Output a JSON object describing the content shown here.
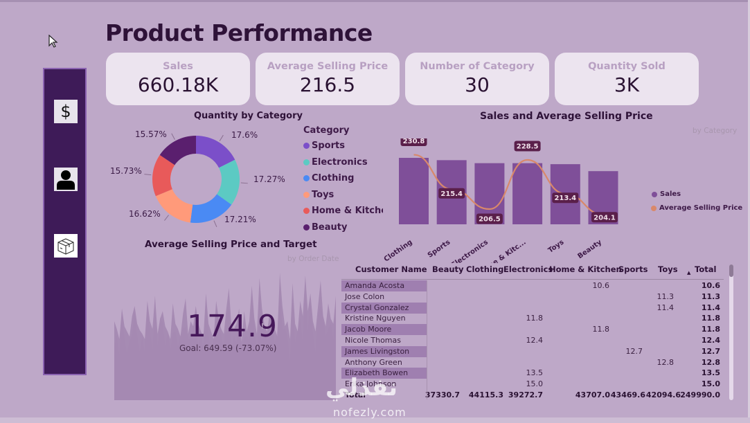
{
  "page": {
    "title": "Product Performance"
  },
  "sidebar": {
    "items": [
      {
        "name": "sales",
        "icon": "dollar-icon",
        "label": "$"
      },
      {
        "name": "customer",
        "icon": "person-icon"
      },
      {
        "name": "product",
        "icon": "box-icon"
      }
    ]
  },
  "kpis": [
    {
      "label": "Sales",
      "value": "660.18K"
    },
    {
      "label": "Average Selling Price",
      "value": "216.5"
    },
    {
      "label": "Number of Category",
      "value": "30"
    },
    {
      "label": "Quantity Sold",
      "value": "3K"
    }
  ],
  "donut": {
    "title": "Quantity by Category",
    "legend_title": "Category",
    "slices": [
      {
        "category": "Sports",
        "percent": 17.6,
        "label": "17.6%",
        "color": "#7b4fc9"
      },
      {
        "category": "Electronics",
        "percent": 17.27,
        "label": "17.27%",
        "color": "#5ccac3"
      },
      {
        "category": "Clothing",
        "percent": 17.21,
        "label": "17.21%",
        "color": "#4a8af4"
      },
      {
        "category": "Toys",
        "percent": 16.62,
        "label": "16.62%",
        "color": "#ff9a7a"
      },
      {
        "category": "Home & Kitchen",
        "legend_label": "Home & Kitcher",
        "percent": 15.73,
        "label": "15.73%",
        "color": "#e85a5a"
      },
      {
        "category": "Beauty",
        "percent": 15.57,
        "label": "15.57%",
        "color": "#5a1f6e"
      }
    ]
  },
  "combo": {
    "title": "Sales and Average Selling Price",
    "subtitle": "by Category",
    "legend": [
      {
        "label": "Sales",
        "color": "#7f4f99"
      },
      {
        "label": "Average Selling Price",
        "color": "#d9886a"
      }
    ]
  },
  "gauge": {
    "title": "Average Selling Price and Target",
    "subtitle": "by Order Date",
    "value": "174.9",
    "warning": "!",
    "goal_text": "Goal: 649.59 (-73.07%)"
  },
  "matrix": {
    "headers": [
      "Customer Name",
      "Beauty",
      "Clothing",
      "Electronics",
      "Home & Kitchen",
      "Sports",
      "Toys",
      "Total"
    ],
    "sort_indicator": "▲",
    "rows": [
      {
        "name": "Amanda Acosta",
        "cells": [
          "",
          "",
          "",
          "10.6",
          "",
          ""
        ],
        "total": "10.6"
      },
      {
        "name": "Jose Colon",
        "cells": [
          "",
          "",
          "",
          "",
          "",
          "11.3"
        ],
        "total": "11.3"
      },
      {
        "name": "Crystal Gonzalez",
        "cells": [
          "",
          "",
          "",
          "",
          "",
          "11.4"
        ],
        "total": "11.4"
      },
      {
        "name": "Kristine Nguyen",
        "cells": [
          "",
          "",
          "11.8",
          "",
          "",
          ""
        ],
        "total": "11.8"
      },
      {
        "name": "Jacob Moore",
        "cells": [
          "",
          "",
          "",
          "11.8",
          "",
          ""
        ],
        "total": "11.8"
      },
      {
        "name": "Nicole Thomas",
        "cells": [
          "",
          "",
          "12.4",
          "",
          "",
          ""
        ],
        "total": "12.4"
      },
      {
        "name": "James Livingston",
        "cells": [
          "",
          "",
          "",
          "",
          "12.7",
          ""
        ],
        "total": "12.7"
      },
      {
        "name": "Anthony Green",
        "cells": [
          "",
          "",
          "",
          "",
          "",
          "12.8"
        ],
        "total": "12.8"
      },
      {
        "name": "Elizabeth Bowen",
        "cells": [
          "",
          "",
          "13.5",
          "",
          "",
          ""
        ],
        "total": "13.5"
      },
      {
        "name": "Erika Johnson",
        "cells": [
          "",
          "",
          "15.0",
          "",
          "",
          ""
        ],
        "total": "15.0"
      }
    ],
    "total_row": {
      "name": "Total",
      "cells": [
        "37330.7",
        "44115.3",
        "39272.7",
        "43707.0",
        "43469.6",
        "42094.6"
      ],
      "total": "249990.0"
    }
  },
  "watermark": {
    "text": "نفذلي",
    "url": "nofezly.com"
  },
  "chart_data": [
    {
      "type": "pie",
      "title": "Quantity by Category",
      "legend_title": "Category",
      "legend_position": "right",
      "categories": [
        "Sports",
        "Electronics",
        "Clothing",
        "Toys",
        "Home & Kitchen",
        "Beauty"
      ],
      "values": [
        17.6,
        17.27,
        17.21,
        16.62,
        15.73,
        15.57
      ],
      "unit": "%"
    },
    {
      "type": "bar",
      "title": "Sales and Average Selling Price",
      "subtitle": "by Category",
      "legend_position": "right",
      "categories": [
        "Clothing",
        "Sports",
        "Electronics",
        "Home & Kitc...",
        "Toys",
        "Beauty"
      ],
      "series": [
        {
          "name": "Sales",
          "type": "bar",
          "values": [
            126000,
            122000,
            117000,
            117000,
            115000,
            104000
          ],
          "relative": [
            1.0,
            0.965,
            0.92,
            0.92,
            0.905,
            0.8
          ]
        },
        {
          "name": "Average Selling Price",
          "type": "line",
          "values": [
            230.8,
            215.4,
            206.5,
            228.5,
            213.4,
            204.1
          ]
        }
      ],
      "data_labels": [
        "230.8",
        "215.4",
        "206.5",
        "228.5",
        "213.4",
        "204.1"
      ]
    },
    {
      "type": "area",
      "title": "Average Selling Price and Target",
      "subtitle": "by Order Date",
      "callout_value": 174.9,
      "goal": 649.59,
      "goal_delta_percent": -73.07,
      "series": [
        {
          "name": "Average Selling Price",
          "values": [
            62,
            56,
            48,
            72,
            58,
            54,
            50,
            66,
            74,
            60,
            55,
            52,
            48,
            78,
            62,
            56,
            82,
            52,
            64,
            70,
            58,
            54,
            48,
            76,
            60,
            56,
            50,
            68,
            80,
            52,
            62,
            58,
            74,
            60,
            54,
            50,
            84,
            60,
            54,
            48,
            78,
            64,
            56,
            52,
            72,
            88,
            58,
            56,
            60,
            72,
            46,
            70,
            54,
            62,
            90,
            64,
            52,
            96,
            72,
            58,
            54,
            68,
            62,
            56,
            50,
            100,
            74,
            58,
            62,
            48,
            92,
            60,
            54,
            78,
            66,
            98,
            70,
            84,
            62,
            54,
            74,
            94,
            66,
            58,
            76,
            64,
            60,
            82
          ]
        }
      ]
    }
  ]
}
